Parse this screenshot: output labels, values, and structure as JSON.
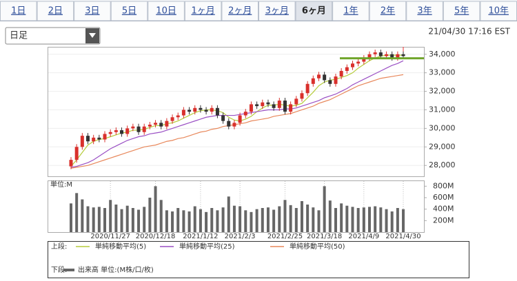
{
  "tabs": [
    "1日",
    "2日",
    "3日",
    "5日",
    "10日",
    "1ヶ月",
    "2ヶ月",
    "3ヶ月",
    "6ヶ月",
    "1年",
    "2年",
    "3年",
    "5年",
    "10年"
  ],
  "selected_tab": 8,
  "dropdown": "日足",
  "timestamp": "21/04/30 17:16 EST",
  "chart_data": [
    {
      "type": "candlestick",
      "legend_label": "上段:",
      "up_color": "#d9302c",
      "down_color": "#333333",
      "open": [
        27950,
        28300,
        29000,
        29600,
        29300,
        29500,
        29400,
        29700,
        29800,
        29900,
        29700,
        30000,
        30100,
        29800,
        30100,
        30200,
        30300,
        30100,
        30400,
        30600,
        30700,
        31000,
        30900,
        31100,
        31000,
        30900,
        31100,
        30700,
        30400,
        30100,
        30300,
        30700,
        30900,
        31300,
        31200,
        31400,
        31300,
        31100,
        31500,
        30900,
        31300,
        31600,
        31900,
        32400,
        32700,
        32900,
        32600,
        32400,
        32800,
        33100,
        33300,
        33500,
        33600,
        33800,
        34000,
        34100,
        33900,
        34000,
        33800,
        34000
      ],
      "high": [
        28450,
        29150,
        29750,
        29750,
        29650,
        29650,
        29850,
        29950,
        30050,
        30050,
        30150,
        30250,
        30250,
        30250,
        30350,
        30450,
        30450,
        30550,
        30750,
        30850,
        31150,
        31150,
        31250,
        31250,
        31150,
        31250,
        31250,
        30850,
        30550,
        30450,
        30850,
        31050,
        31450,
        31450,
        31550,
        31550,
        31450,
        31650,
        31650,
        31450,
        31750,
        32050,
        32550,
        32850,
        33050,
        33050,
        32750,
        32950,
        33250,
        33450,
        33650,
        33750,
        33950,
        34150,
        34250,
        34250,
        34150,
        34150,
        34150,
        34150
      ],
      "low": [
        27800,
        28150,
        28850,
        29150,
        29150,
        29250,
        29250,
        29550,
        29650,
        29550,
        29550,
        29850,
        29650,
        29650,
        29950,
        30050,
        29950,
        29950,
        30250,
        30450,
        30550,
        30750,
        30750,
        30850,
        30750,
        30750,
        30550,
        30250,
        29950,
        29950,
        30150,
        30550,
        30750,
        31050,
        31050,
        31150,
        30950,
        30950,
        30750,
        30750,
        31150,
        31450,
        31750,
        32250,
        32550,
        32450,
        32250,
        32250,
        32650,
        32950,
        33150,
        33350,
        33450,
        33650,
        33850,
        33750,
        33750,
        33650,
        33650,
        33750
      ],
      "close": [
        28300,
        29000,
        29600,
        29300,
        29500,
        29400,
        29700,
        29800,
        29900,
        29700,
        30000,
        30100,
        29800,
        30100,
        30200,
        30300,
        30100,
        30400,
        30600,
        30700,
        31000,
        30900,
        31100,
        31000,
        30900,
        31100,
        30700,
        30400,
        30100,
        30300,
        30700,
        30900,
        31300,
        31200,
        31400,
        31300,
        31100,
        31500,
        30900,
        31300,
        31600,
        31900,
        32400,
        32700,
        32900,
        32600,
        32400,
        32800,
        33100,
        33300,
        33500,
        33600,
        33800,
        34000,
        34100,
        33900,
        34000,
        33800,
        34000,
        33900
      ],
      "series": [
        {
          "name": "単純移動平均(5)",
          "color": "#b5cc3a",
          "values": [
            27950,
            28300,
            28700,
            29100,
            29300,
            29400,
            29450,
            29550,
            29650,
            29750,
            29800,
            29900,
            29900,
            29950,
            30050,
            30150,
            30150,
            30250,
            30300,
            30400,
            30550,
            30700,
            30850,
            30950,
            31000,
            31000,
            30950,
            30850,
            30600,
            30450,
            30400,
            30500,
            30650,
            30900,
            31100,
            31250,
            31250,
            31300,
            31250,
            31200,
            31250,
            31350,
            31650,
            31950,
            32300,
            32500,
            32600,
            32650,
            32750,
            32850,
            33000,
            33250,
            33450,
            33650,
            33800,
            33900,
            33950,
            33950,
            33950,
            33950
          ]
        },
        {
          "name": "単純移動平均(25)",
          "color": "#9a4fc4",
          "values": [
            27900,
            27950,
            28050,
            28150,
            28300,
            28500,
            28700,
            28900,
            29050,
            29200,
            29350,
            29450,
            29550,
            29600,
            29700,
            29750,
            29800,
            29900,
            30000,
            30100,
            30200,
            30300,
            30400,
            30500,
            30600,
            30650,
            30700,
            30700,
            30700,
            30700,
            30750,
            30800,
            30850,
            30900,
            30950,
            31000,
            31000,
            31000,
            31050,
            31050,
            31100,
            31200,
            31300,
            31400,
            31500,
            31650,
            31750,
            31850,
            32000,
            32150,
            32350,
            32500,
            32650,
            32800,
            32950,
            33100,
            33250,
            33400,
            33500,
            33650
          ]
        },
        {
          "name": "単純移動平均(50)",
          "color": "#e8875a",
          "values": [
            27850,
            27900,
            27950,
            28000,
            28100,
            28200,
            28300,
            28400,
            28500,
            28600,
            28700,
            28800,
            28900,
            29000,
            29050,
            29100,
            29200,
            29300,
            29350,
            29450,
            29500,
            29600,
            29700,
            29800,
            29850,
            29950,
            30000,
            30100,
            30150,
            30200,
            30250,
            30300,
            30400,
            30450,
            30500,
            30550,
            30650,
            30700,
            30750,
            30800,
            30900,
            31000,
            31100,
            31200,
            31350,
            31450,
            31550,
            31700,
            31850,
            32000,
            32150,
            32300,
            32400,
            32500,
            32600,
            32700,
            32750,
            32800,
            32850,
            32900
          ]
        }
      ],
      "reference_line": {
        "value": 33780,
        "color": "#6fa52a"
      },
      "ylim": [
        27450,
        34400
      ],
      "yticks": [
        {
          "value": 28000,
          "label": "28,000"
        },
        {
          "value": 29000,
          "label": "29,000"
        },
        {
          "value": 30000,
          "label": "30,000"
        },
        {
          "value": 31000,
          "label": "31,000"
        },
        {
          "value": 32000,
          "label": "32,000"
        },
        {
          "value": 33000,
          "label": "33,000"
        },
        {
          "value": 34000,
          "label": "34,000"
        }
      ],
      "grid": true
    },
    {
      "type": "bar",
      "legend_label": "下段:",
      "unit_label": "単位:M",
      "series_name": "出来高 単位:(M株/口/枚)",
      "color": "#666666",
      "categories": [
        null,
        null,
        null,
        null,
        null,
        null,
        null,
        "2020/11/27",
        null,
        null,
        null,
        null,
        null,
        null,
        null,
        "2020/12/18",
        null,
        null,
        null,
        null,
        null,
        null,
        null,
        "2021/1/12",
        null,
        null,
        null,
        null,
        null,
        null,
        "2021/2/3",
        null,
        null,
        null,
        null,
        null,
        null,
        null,
        "2021/2/25",
        null,
        null,
        null,
        null,
        null,
        null,
        "2021/3/18",
        null,
        null,
        null,
        null,
        null,
        null,
        "2021/4/9",
        null,
        null,
        null,
        null,
        null,
        null,
        "2021/4/30"
      ],
      "values": [
        500,
        680,
        570,
        450,
        430,
        440,
        420,
        560,
        480,
        400,
        460,
        420,
        390,
        440,
        600,
        800,
        560,
        380,
        360,
        420,
        380,
        360,
        450,
        400,
        350,
        420,
        380,
        430,
        620,
        460,
        450,
        380,
        350,
        400,
        420,
        430,
        390,
        450,
        560,
        470,
        420,
        540,
        480,
        430,
        380,
        800,
        550,
        420,
        500,
        460,
        440,
        420,
        430,
        440,
        450,
        430,
        400,
        360,
        420,
        400
      ],
      "ylim": [
        0,
        900
      ],
      "yticks": [
        {
          "value": 200,
          "label": "200M"
        },
        {
          "value": 400,
          "label": "400M"
        },
        {
          "value": 600,
          "label": "600M"
        },
        {
          "value": 800,
          "label": "800M"
        }
      ]
    }
  ]
}
